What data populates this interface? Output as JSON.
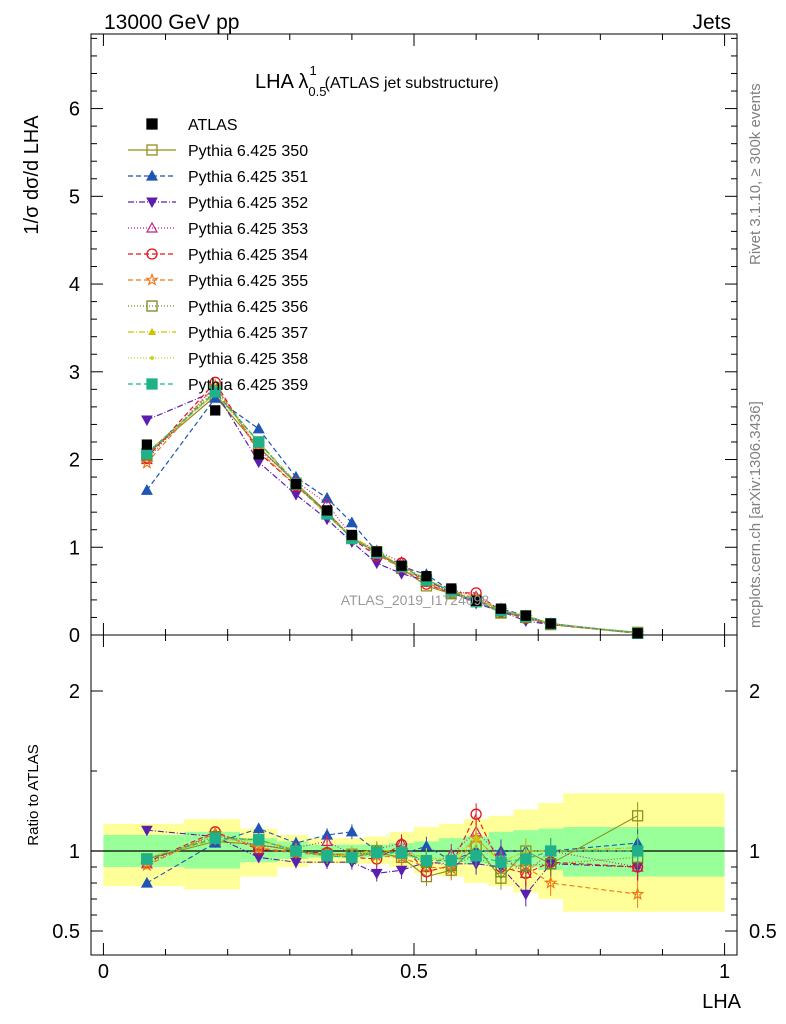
{
  "header": {
    "left": "13000 GeV pp",
    "right": "Jets",
    "side_top": "Rivet 3.1.10, ≥ 300k events",
    "side_bottom": "mcplots.cern.ch [arXiv:1306.3436]",
    "watermark": "ATLAS_2019_I1724098"
  },
  "chart_data": [
    {
      "type": "line",
      "title_main": "LHA λ",
      "title_sup": "1",
      "title_sub": "0.5",
      "title_tail": "(ATLAS jet substructure)",
      "ylabel": "1/σ dσ/d LHA",
      "xlim": [
        -0.02,
        1.02
      ],
      "ylim": [
        0,
        6.85
      ],
      "yticks": [
        "0",
        "1",
        "2",
        "3",
        "4",
        "5",
        "6"
      ],
      "x": [
        0.07,
        0.18,
        0.25,
        0.31,
        0.36,
        0.4,
        0.44,
        0.48,
        0.52,
        0.56,
        0.6,
        0.64,
        0.68,
        0.72,
        0.86
      ],
      "reference": {
        "name": "ATLAS",
        "color": "#000000",
        "values": [
          2.17,
          2.56,
          2.06,
          1.72,
          1.42,
          1.14,
          0.95,
          0.79,
          0.67,
          0.53,
          0.39,
          0.3,
          0.22,
          0.13,
          0.02
        ]
      },
      "series": [
        {
          "name": "Pythia 6.425 350",
          "color": "#8f8f1f",
          "marker": "square-open",
          "dash": "",
          "values": [
            2.06,
            2.72,
            2.14,
            1.73,
            1.4,
            1.11,
            0.94,
            0.76,
            0.56,
            0.47,
            0.4,
            0.25,
            0.22,
            0.12,
            0.03
          ]
        },
        {
          "name": "Pythia 6.425 351",
          "color": "#1f55b4",
          "marker": "triangle-up",
          "dash": "5,3",
          "values": [
            1.65,
            2.7,
            2.35,
            1.8,
            1.56,
            1.28,
            0.95,
            0.78,
            0.69,
            0.5,
            0.39,
            0.3,
            0.22,
            0.13,
            0.02
          ]
        },
        {
          "name": "Pythia 6.425 352",
          "color": "#5a1fb0",
          "marker": "triangle-down",
          "dash": "6,2,1,2",
          "values": [
            2.45,
            2.78,
            1.97,
            1.6,
            1.32,
            1.06,
            0.82,
            0.7,
            0.62,
            0.49,
            0.36,
            0.27,
            0.16,
            0.12,
            0.02
          ]
        },
        {
          "name": "Pythia 6.425 353",
          "color": "#c2237e",
          "marker": "triangle-open",
          "dash": "1,2",
          "values": [
            2.0,
            2.84,
            2.12,
            1.75,
            1.5,
            1.12,
            0.96,
            0.83,
            0.6,
            0.52,
            0.44,
            0.29,
            0.19,
            0.13,
            0.02
          ]
        },
        {
          "name": "Pythia 6.425 354",
          "color": "#e0141e",
          "marker": "circle-open",
          "dash": "5,3",
          "values": [
            2.02,
            2.88,
            2.08,
            1.7,
            1.4,
            1.1,
            0.9,
            0.82,
            0.58,
            0.48,
            0.48,
            0.27,
            0.19,
            0.12,
            0.02
          ]
        },
        {
          "name": "Pythia 6.425 355",
          "color": "#f07818",
          "marker": "star-open",
          "dash": "5,3",
          "values": [
            1.96,
            2.84,
            2.1,
            1.7,
            1.38,
            1.12,
            0.92,
            0.76,
            0.6,
            0.47,
            0.42,
            0.28,
            0.2,
            0.12,
            0.02
          ]
        },
        {
          "name": "Pythia 6.425 356",
          "color": "#6f8a1b",
          "marker": "square-open",
          "dash": "1,2",
          "values": [
            2.05,
            2.79,
            2.2,
            1.72,
            1.38,
            1.1,
            0.95,
            0.78,
            0.62,
            0.48,
            0.38,
            0.26,
            0.2,
            0.12,
            0.02
          ]
        },
        {
          "name": "Pythia 6.425 357",
          "color": "#d0c000",
          "marker": "triangle-small",
          "dash": "6,2,1,2",
          "values": [
            2.08,
            2.75,
            2.2,
            1.74,
            1.36,
            1.12,
            0.96,
            0.78,
            0.64,
            0.5,
            0.42,
            0.28,
            0.22,
            0.13,
            0.02
          ]
        },
        {
          "name": "Pythia 6.425 358",
          "color": "#c8d22c",
          "marker": "dot",
          "dash": "1,2",
          "values": [
            2.08,
            2.75,
            2.18,
            1.72,
            1.38,
            1.12,
            0.94,
            0.78,
            0.64,
            0.5,
            0.4,
            0.28,
            0.22,
            0.13,
            0.02
          ]
        },
        {
          "name": "Pythia 6.425 359",
          "color": "#1fb28a",
          "marker": "square",
          "dash": "5,3",
          "values": [
            2.07,
            2.77,
            2.2,
            1.72,
            1.38,
            1.1,
            0.94,
            0.78,
            0.63,
            0.5,
            0.38,
            0.28,
            0.21,
            0.13,
            0.02
          ]
        }
      ],
      "legend_position": "top-left"
    },
    {
      "type": "line",
      "title": "",
      "xlabel": "LHA",
      "ylabel": "Ratio to ATLAS",
      "xlim": [
        -0.02,
        1.02
      ],
      "ylim": [
        0.35,
        2.35
      ],
      "yticks": [
        "0.5",
        "1",
        "2"
      ],
      "xticks": [
        "0",
        "0.5",
        "1"
      ],
      "reference_line": 1,
      "bands": {
        "edges": [
          0.0,
          0.13,
          0.22,
          0.28,
          0.33,
          0.38,
          0.42,
          0.46,
          0.5,
          0.54,
          0.58,
          0.62,
          0.66,
          0.7,
          0.74,
          1.0
        ],
        "inner": [
          [
            0.9,
            1.1
          ],
          [
            0.89,
            1.12
          ],
          [
            0.93,
            1.08
          ],
          [
            0.95,
            1.06
          ],
          [
            0.96,
            1.04
          ],
          [
            0.96,
            1.04
          ],
          [
            0.96,
            1.04
          ],
          [
            0.96,
            1.05
          ],
          [
            0.94,
            1.06
          ],
          [
            0.93,
            1.08
          ],
          [
            0.92,
            1.09
          ],
          [
            0.9,
            1.12
          ],
          [
            0.9,
            1.13
          ],
          [
            0.88,
            1.14
          ],
          [
            0.84,
            1.15
          ]
        ],
        "outer": [
          [
            0.78,
            1.17
          ],
          [
            0.76,
            1.2
          ],
          [
            0.84,
            1.14
          ],
          [
            0.9,
            1.1
          ],
          [
            0.92,
            1.08
          ],
          [
            0.92,
            1.08
          ],
          [
            0.92,
            1.09
          ],
          [
            0.9,
            1.12
          ],
          [
            0.86,
            1.15
          ],
          [
            0.84,
            1.17
          ],
          [
            0.8,
            1.2
          ],
          [
            0.78,
            1.22
          ],
          [
            0.74,
            1.26
          ],
          [
            0.7,
            1.3
          ],
          [
            0.62,
            1.36
          ]
        ]
      },
      "ratios": [
        [
          0.95,
          1.06,
          1.04,
          1.0,
          0.98,
          0.98,
          0.99,
          0.96,
          0.84,
          0.88,
          1.03,
          0.83,
          1.0,
          0.92,
          1.22
        ],
        [
          0.8,
          1.05,
          1.14,
          1.05,
          1.1,
          1.12,
          1.0,
          0.98,
          1.03,
          0.94,
          1.0,
          1.0,
          1.0,
          1.0,
          1.05
        ],
        [
          1.13,
          1.09,
          0.96,
          0.93,
          0.93,
          0.93,
          0.86,
          0.88,
          0.93,
          0.92,
          0.92,
          0.9,
          0.73,
          0.92,
          0.9
        ],
        [
          0.92,
          1.11,
          1.03,
          1.02,
          1.06,
          0.98,
          1.01,
          1.05,
          0.9,
          0.98,
          1.12,
          0.97,
          0.86,
          1.0,
          0.9
        ],
        [
          0.93,
          1.12,
          1.01,
          0.99,
          0.99,
          0.96,
          0.95,
          1.04,
          0.87,
          0.91,
          1.23,
          0.9,
          0.86,
          0.93,
          0.9
        ],
        [
          0.91,
          1.11,
          1.02,
          0.99,
          0.97,
          0.98,
          0.97,
          0.96,
          0.9,
          0.89,
          1.08,
          0.93,
          0.9,
          0.8,
          0.73
        ],
        [
          0.95,
          1.09,
          1.07,
          1.0,
          0.97,
          0.96,
          1.0,
          0.99,
          0.93,
          0.91,
          0.97,
          0.87,
          0.91,
          0.92,
          0.96
        ],
        [
          0.96,
          1.07,
          1.07,
          1.01,
          0.96,
          0.98,
          1.01,
          0.99,
          0.96,
          0.94,
          1.08,
          0.93,
          1.0,
          1.0,
          1.02
        ],
        [
          0.96,
          1.07,
          1.06,
          1.0,
          0.97,
          0.98,
          0.99,
          0.99,
          0.96,
          0.94,
          1.03,
          0.93,
          1.0,
          1.0,
          1.0
        ],
        [
          0.95,
          1.08,
          1.07,
          1.0,
          0.97,
          0.96,
          0.99,
          0.99,
          0.94,
          0.94,
          0.97,
          0.93,
          0.95,
          1.0,
          1.0
        ]
      ]
    }
  ]
}
